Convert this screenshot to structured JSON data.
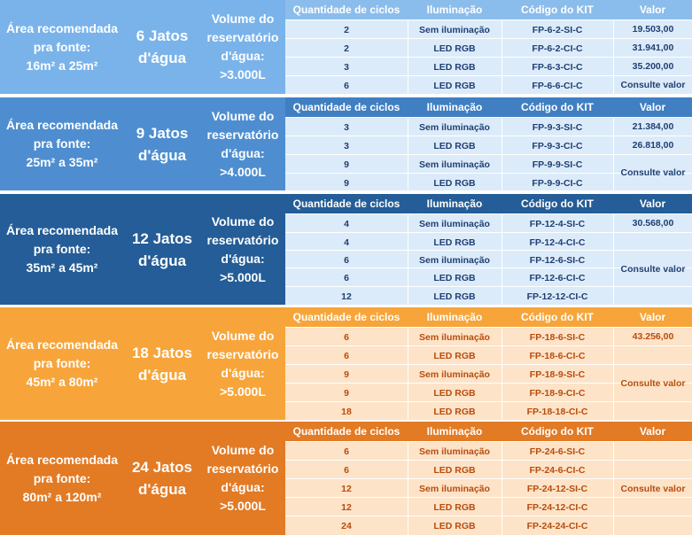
{
  "headers": {
    "ciclos": "Quantidade de ciclos",
    "iluminacao": "Iluminação",
    "codigo": "Código do KIT",
    "valor": "Valor"
  },
  "sections": [
    {
      "area": [
        "Área recomendada",
        "pra fonte:",
        "16m² a 25m²"
      ],
      "jatos": "6 Jatos d'água",
      "volume": [
        "Volume do",
        "reservatório",
        "d'água:",
        ">3.000L"
      ],
      "rows": [
        {
          "ciclos": "2",
          "iluminacao": "Sem iluminação",
          "codigo": "FP-6-2-SI-C"
        },
        {
          "ciclos": "2",
          "iluminacao": "LED RGB",
          "codigo": "FP-6-2-CI-C"
        },
        {
          "ciclos": "3",
          "iluminacao": "LED RGB",
          "codigo": "FP-6-3-CI-C"
        },
        {
          "ciclos": "6",
          "iluminacao": "LED RGB",
          "codigo": "FP-6-6-CI-C"
        }
      ],
      "valores": [
        {
          "text": "19.503,00",
          "span": 1
        },
        {
          "text": "31.941,00",
          "span": 1
        },
        {
          "text": "35.200,00",
          "span": 1
        },
        {
          "text": "Consulte valor",
          "span": 1
        }
      ]
    },
    {
      "area": [
        "Área recomendada",
        "pra fonte:",
        "25m² a 35m²"
      ],
      "jatos": "9 Jatos d'água",
      "volume": [
        "Volume do",
        "reservatório",
        "d'água:",
        ">4.000L"
      ],
      "rows": [
        {
          "ciclos": "3",
          "iluminacao": "Sem iluminação",
          "codigo": "FP-9-3-SI-C"
        },
        {
          "ciclos": "3",
          "iluminacao": "LED RGB",
          "codigo": "FP-9-3-CI-C"
        },
        {
          "ciclos": "9",
          "iluminacao": "Sem iluminação",
          "codigo": "FP-9-9-SI-C"
        },
        {
          "ciclos": "9",
          "iluminacao": "LED RGB",
          "codigo": "FP-9-9-CI-C"
        }
      ],
      "valores": [
        {
          "text": "21.384,00",
          "span": 1
        },
        {
          "text": "26.818,00",
          "span": 1
        },
        {
          "text": "Consulte valor",
          "span": 2
        }
      ]
    },
    {
      "area": [
        "Área recomendada",
        "pra fonte:",
        "35m² a 45m²"
      ],
      "jatos": "12 Jatos d'água",
      "volume": [
        "Volume do",
        "reservatório",
        "d'água:",
        ">5.000L"
      ],
      "rows": [
        {
          "ciclos": "4",
          "iluminacao": "Sem iluminação",
          "codigo": "FP-12-4-SI-C"
        },
        {
          "ciclos": "4",
          "iluminacao": "LED RGB",
          "codigo": "FP-12-4-CI-C"
        },
        {
          "ciclos": "6",
          "iluminacao": "Sem iluminação",
          "codigo": "FP-12-6-SI-C"
        },
        {
          "ciclos": "6",
          "iluminacao": "LED RGB",
          "codigo": "FP-12-6-CI-C"
        },
        {
          "ciclos": "12",
          "iluminacao": "LED RGB",
          "codigo": "FP-12-12-CI-C"
        }
      ],
      "valores": [
        {
          "text": "30.568,00",
          "span": 1
        },
        {
          "text": "Consulte valor",
          "span": 4
        }
      ]
    },
    {
      "area": [
        "Área recomendada",
        "pra fonte:",
        "45m² a 80m²"
      ],
      "jatos": "18 Jatos d'água",
      "volume": [
        "Volume do",
        "reservatório",
        "d'água:",
        ">5.000L"
      ],
      "rows": [
        {
          "ciclos": "6",
          "iluminacao": "Sem iluminação",
          "codigo": "FP-18-6-SI-C"
        },
        {
          "ciclos": "6",
          "iluminacao": "LED RGB",
          "codigo": "FP-18-6-CI-C"
        },
        {
          "ciclos": "9",
          "iluminacao": "Sem iluminação",
          "codigo": "FP-18-9-SI-C"
        },
        {
          "ciclos": "9",
          "iluminacao": "LED RGB",
          "codigo": "FP-18-9-CI-C"
        },
        {
          "ciclos": "18",
          "iluminacao": "LED RGB",
          "codigo": "FP-18-18-CI-C"
        }
      ],
      "valores": [
        {
          "text": "43.256,00",
          "span": 1
        },
        {
          "text": "Consulte valor",
          "span": 4
        }
      ]
    },
    {
      "area": [
        "Área recomendada",
        "pra fonte:",
        "80m² a 120m²"
      ],
      "jatos": "24 Jatos d'água",
      "volume": [
        "Volume do",
        "reservatório",
        "d'água:",
        ">5.000L"
      ],
      "rows": [
        {
          "ciclos": "6",
          "iluminacao": "Sem iluminação",
          "codigo": "FP-24-6-SI-C"
        },
        {
          "ciclos": "6",
          "iluminacao": "LED RGB",
          "codigo": "FP-24-6-CI-C"
        },
        {
          "ciclos": "12",
          "iluminacao": "Sem iluminação",
          "codigo": "FP-24-12-SI-C"
        },
        {
          "ciclos": "12",
          "iluminacao": "LED RGB",
          "codigo": "FP-24-12-CI-C"
        },
        {
          "ciclos": "24",
          "iluminacao": "LED RGB",
          "codigo": "FP-24-24-CI-C"
        }
      ],
      "valores": [
        {
          "text": "Consulte valor",
          "span": 5
        }
      ]
    }
  ],
  "colors": {
    "blue_text": "#1f3f73",
    "orange_text": "#b94c0c",
    "grid_line": "#ffffff"
  }
}
